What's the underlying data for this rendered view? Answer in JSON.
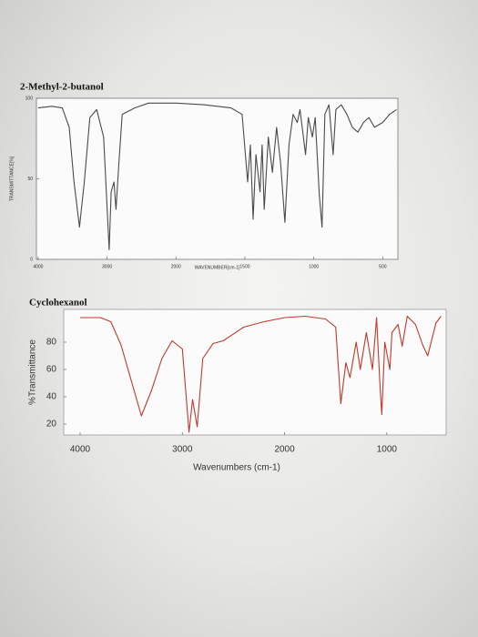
{
  "chart_data": [
    {
      "type": "line",
      "title": "2-Methyl-2-butanol",
      "xlabel": "WAVENUMBER[cm-1]",
      "ylabel": "TRANSMITTANCE[%]",
      "color": "#4a4a4a",
      "x": [
        4000,
        3800,
        3650,
        3550,
        3480,
        3400,
        3330,
        3250,
        3150,
        3050,
        2970,
        2940,
        2900,
        2870,
        2830,
        2780,
        2600,
        2400,
        2200,
        2000,
        1800,
        1600,
        1520,
        1480,
        1460,
        1440,
        1420,
        1390,
        1375,
        1360,
        1330,
        1300,
        1270,
        1240,
        1210,
        1180,
        1150,
        1120,
        1100,
        1060,
        1040,
        1010,
        990,
        960,
        940,
        920,
        890,
        860,
        840,
        800,
        760,
        720,
        680,
        640,
        600,
        560,
        500,
        450,
        400
      ],
      "values": [
        94,
        95,
        94,
        82,
        48,
        20,
        48,
        88,
        93,
        76,
        6,
        42,
        48,
        31,
        59,
        90,
        94,
        97,
        97,
        97,
        96,
        94,
        90,
        48,
        71,
        25,
        65,
        42,
        71,
        31,
        76,
        54,
        82,
        59,
        23,
        71,
        90,
        85,
        93,
        65,
        88,
        76,
        88,
        40,
        20,
        90,
        96,
        65,
        93,
        96,
        90,
        82,
        79,
        85,
        88,
        82,
        85,
        90,
        93
      ],
      "xlim": [
        4025,
        390
      ],
      "xticks": [
        4000,
        3000,
        2000,
        1500,
        1000,
        500
      ],
      "ylim": [
        0,
        100
      ],
      "yticks": [
        0,
        50,
        100
      ]
    },
    {
      "type": "line",
      "title": "Cyclohexanol",
      "xlabel": "Wavenumbers (cm-1)",
      "ylabel": "%Transmittance",
      "color": "#c0392b",
      "x": [
        4000,
        3800,
        3700,
        3600,
        3400,
        3300,
        3200,
        3100,
        3000,
        2935,
        2900,
        2855,
        2800,
        2700,
        2600,
        2400,
        2200,
        2000,
        1800,
        1600,
        1500,
        1450,
        1400,
        1360,
        1300,
        1260,
        1200,
        1140,
        1100,
        1070,
        1050,
        1020,
        970,
        950,
        890,
        850,
        800,
        720,
        650,
        600,
        520,
        470
      ],
      "values": [
        98,
        98,
        95,
        78,
        26,
        45,
        68,
        81,
        75,
        14,
        38,
        18,
        68,
        79,
        81,
        91,
        95,
        98,
        99,
        97,
        91,
        35,
        65,
        54,
        80,
        60,
        87,
        60,
        98,
        53,
        27,
        80,
        60,
        87,
        93,
        77,
        99,
        93,
        78,
        70,
        94,
        99
      ],
      "xlim": [
        4160,
        420
      ],
      "xticks": [
        4000,
        3000,
        2000,
        1000
      ],
      "ylim": [
        12,
        104
      ],
      "yticks": [
        20,
        40,
        60,
        80
      ]
    }
  ]
}
